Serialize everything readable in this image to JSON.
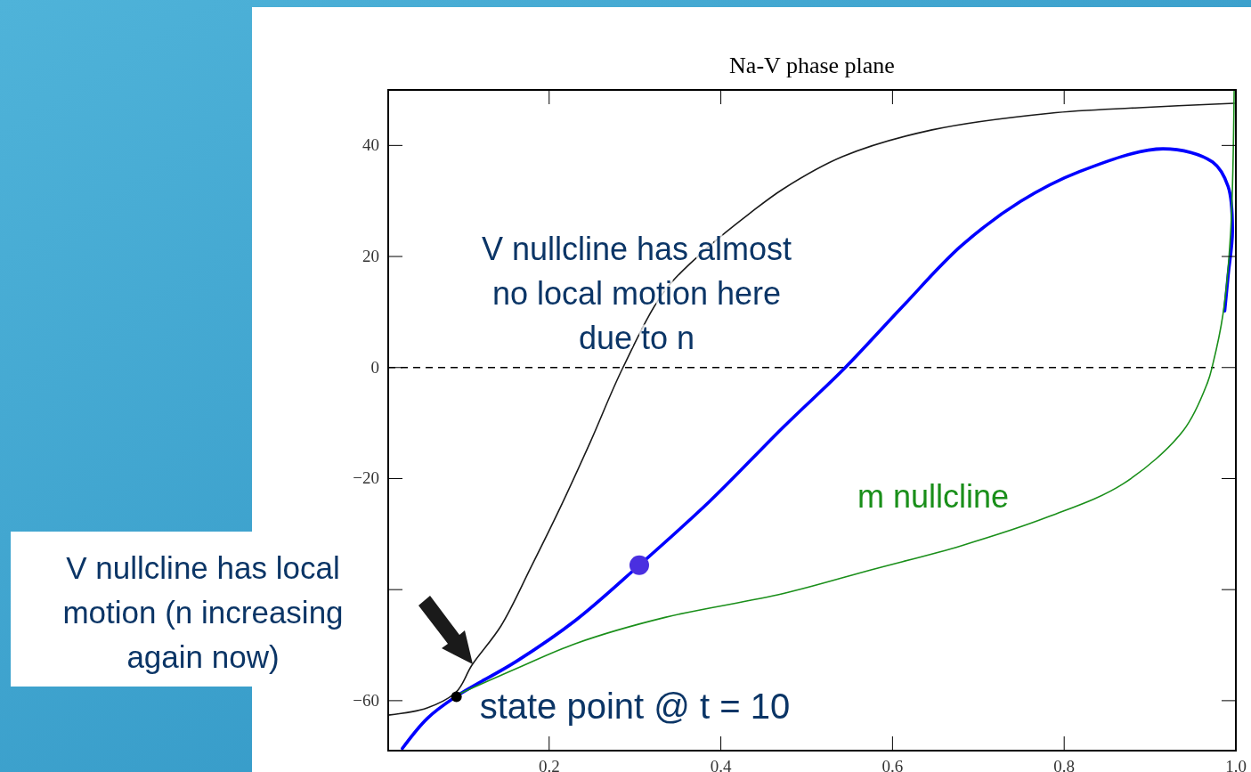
{
  "chart_data": {
    "type": "line",
    "title": "Na-V phase plane",
    "xlim": [
      0.0125,
      1.0
    ],
    "xticks": [
      0.2,
      0.4,
      0.6,
      0.8,
      {
        "value": 1.0,
        "label": "1.0"
      }
    ],
    "ylim": [
      -69,
      50
    ],
    "yticks": [
      {
        "value": -60,
        "label": "−60"
      },
      {
        "value": -40,
        "label": null
      },
      {
        "value": -20,
        "label": "−20"
      },
      0,
      20,
      40
    ],
    "grid": false,
    "series": [
      {
        "color": "#1a1a1a",
        "x": [
          0.0125,
          0.058,
          0.092,
          0.11,
          0.144,
          0.179,
          0.213,
          0.248,
          0.286,
          0.335,
          0.387,
          0.434,
          0.473,
          0.542,
          0.646,
          0.783,
          0.887,
          0.998
        ],
        "values": [
          -62.6,
          -61.3,
          -58.4,
          -53.6,
          -46.5,
          -35.9,
          -25.2,
          -13.4,
          0,
          13.9,
          21.9,
          27.8,
          32.2,
          38.0,
          42.8,
          45.8,
          46.8,
          47.6
        ]
      },
      {
        "color": "#0000ff",
        "x": [
          0.029,
          0.058,
          0.092,
          0.162,
          0.231,
          0.305,
          0.387,
          0.473,
          0.545,
          0.61,
          0.68,
          0.749,
          0.818,
          0.915,
          0.973,
          0.991,
          0.996,
          0.991,
          0.987
        ],
        "values": [
          -68.6,
          -63.2,
          -59.2,
          -52.9,
          -45.5,
          -35.6,
          -24.1,
          -10.7,
          0,
          10.7,
          21.9,
          29.9,
          35.3,
          39.4,
          37.0,
          32.6,
          24.6,
          16.6,
          10.2
        ]
      },
      {
        "name": "m nullcline",
        "color": "#1a8f1a",
        "x": [
          0.092,
          0.162,
          0.231,
          0.335,
          0.473,
          0.576,
          0.68,
          0.783,
          0.869,
          0.939,
          0.967,
          0.973,
          0.985,
          0.994,
          0.998
        ],
        "values": [
          -59.0,
          -54.2,
          -49.7,
          -45.0,
          -40.7,
          -36.4,
          -32.1,
          -26.8,
          -20.9,
          -11.3,
          -2.7,
          0.5,
          9.6,
          24.6,
          50
        ]
      },
      {
        "type": "scatter",
        "marker": "circle",
        "color": "#4a2fe0",
        "x": [
          0.305
        ],
        "values": [
          -35.6
        ]
      },
      {
        "type": "scatter",
        "marker": "circle",
        "color": "#000000",
        "x": [
          0.092
        ],
        "values": [
          -59.3
        ]
      }
    ],
    "ref_lines": [
      {
        "axis": "y",
        "value": 0,
        "color": "#000000",
        "line_style": "dashed"
      }
    ],
    "annotations": [
      "V nullcline has almost no local motion here due to n",
      "V nullcline has local motion (n increasing again now)",
      {
        "text": "state point @ t = 10",
        "x": 0.092,
        "y": -59.3
      }
    ]
  }
}
